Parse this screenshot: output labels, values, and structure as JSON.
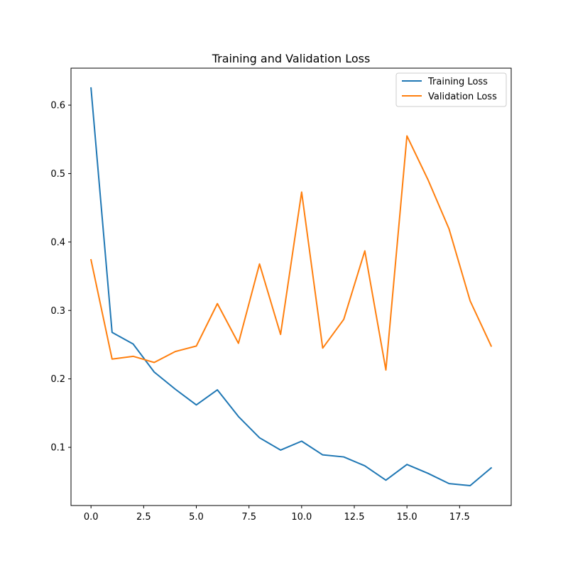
{
  "chart_data": {
    "type": "line",
    "title": "Training and Validation Loss",
    "xlabel": "",
    "ylabel": "",
    "xlim": [
      -0.95,
      19.95
    ],
    "ylim": [
      0.015,
      0.654
    ],
    "x_ticks": [
      0.0,
      2.5,
      5.0,
      7.5,
      10.0,
      12.5,
      15.0,
      17.5
    ],
    "x_tick_labels": [
      "0.0",
      "2.5",
      "5.0",
      "7.5",
      "10.0",
      "12.5",
      "15.0",
      "17.5"
    ],
    "y_ticks": [
      0.1,
      0.2,
      0.3,
      0.4,
      0.5,
      0.6
    ],
    "y_tick_labels": [
      "0.1",
      "0.2",
      "0.3",
      "0.4",
      "0.5",
      "0.6"
    ],
    "grid": false,
    "legend_position": "top-right",
    "x": [
      0,
      1,
      2,
      3,
      4,
      5,
      6,
      7,
      8,
      9,
      10,
      11,
      12,
      13,
      14,
      15,
      16,
      17,
      18,
      19
    ],
    "series": [
      {
        "name": "Training Loss",
        "color": "#1f77b4",
        "values": [
          0.625,
          0.268,
          0.251,
          0.21,
          0.185,
          0.162,
          0.184,
          0.145,
          0.114,
          0.096,
          0.109,
          0.089,
          0.086,
          0.073,
          0.052,
          0.075,
          0.062,
          0.047,
          0.044,
          0.07
        ]
      },
      {
        "name": "Validation Loss",
        "color": "#ff7f0e",
        "values": [
          0.374,
          0.229,
          0.233,
          0.224,
          0.24,
          0.248,
          0.31,
          0.252,
          0.368,
          0.265,
          0.473,
          0.245,
          0.287,
          0.387,
          0.213,
          0.555,
          0.491,
          0.419,
          0.314,
          0.248
        ]
      }
    ]
  }
}
